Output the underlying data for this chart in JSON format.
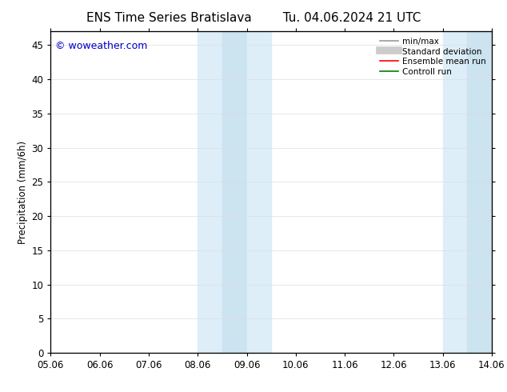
{
  "title_left": "ENS Time Series Bratislava",
  "title_right": "Tu. 04.06.2024 21 UTC",
  "ylabel": "Precipitation (mm/6h)",
  "xlabel": "",
  "xlim_labels": [
    "05.06",
    "06.06",
    "07.06",
    "08.06",
    "09.06",
    "10.06",
    "11.06",
    "12.06",
    "13.06",
    "14.06"
  ],
  "ylim": [
    0,
    47
  ],
  "yticks": [
    0,
    5,
    10,
    15,
    20,
    25,
    30,
    35,
    40,
    45
  ],
  "shaded_bands": [
    {
      "xstart": 3.0,
      "xend": 3.5,
      "color": "#ddeef8"
    },
    {
      "xstart": 3.5,
      "xend": 4.0,
      "color": "#cce3f0"
    },
    {
      "xstart": 4.0,
      "xend": 4.5,
      "color": "#ddeef8"
    },
    {
      "xstart": 8.0,
      "xend": 8.5,
      "color": "#ddeef8"
    },
    {
      "xstart": 8.5,
      "xend": 9.0,
      "color": "#cce3f0"
    }
  ],
  "watermark": "© woweather.com",
  "watermark_color": "#0000cc",
  "background_color": "#ffffff",
  "legend_items": [
    {
      "label": "min/max",
      "color": "#999999",
      "lw": 1.2
    },
    {
      "label": "Standard deviation",
      "color": "#cccccc",
      "lw": 7
    },
    {
      "label": "Ensemble mean run",
      "color": "#ff0000",
      "lw": 1.2
    },
    {
      "label": "Controll run",
      "color": "#008000",
      "lw": 1.2
    }
  ],
  "grid_color": "#dddddd",
  "tick_label_fontsize": 8.5,
  "title_fontsize": 11,
  "ylabel_fontsize": 8.5
}
